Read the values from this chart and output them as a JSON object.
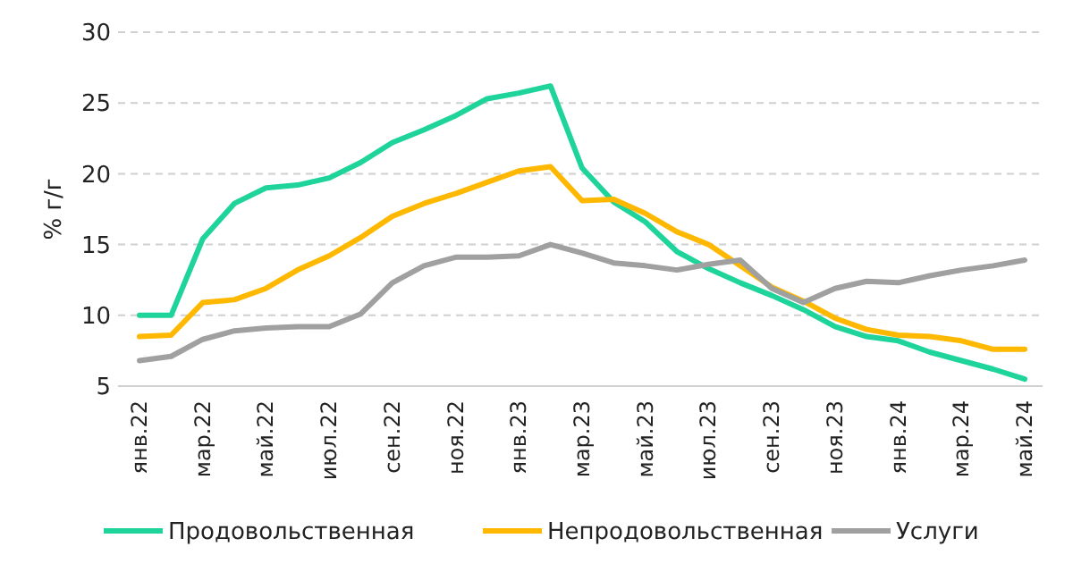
{
  "chart_data": {
    "type": "line",
    "ylabel": "% г/г",
    "categories": [
      "янв.22",
      null,
      "мар.22",
      null,
      "май.22",
      null,
      "июл.22",
      null,
      "сен.22",
      null,
      "ноя.22",
      null,
      "янв.23",
      null,
      "мар.23",
      null,
      "май.23",
      null,
      "июл.23",
      null,
      "сен.23",
      null,
      "ноя.23",
      null,
      "янв.24",
      null,
      "мар.24",
      null,
      "май.24"
    ],
    "series": [
      {
        "name": "Продовольственная",
        "color": "#1fd49a",
        "values": [
          10,
          10,
          15.4,
          17.9,
          19,
          19.2,
          19.7,
          20.8,
          22.2,
          23.1,
          24.1,
          25.3,
          25.7,
          26.2,
          20.4,
          18.0,
          16.6,
          14.5,
          13.3,
          12.3,
          11.4,
          10.4,
          9.2,
          8.5,
          8.2,
          7.4,
          6.8,
          6.2,
          5.5
        ]
      },
      {
        "name": "Непродовольственная",
        "color": "#ffb800",
        "values": [
          8.5,
          8.6,
          10.9,
          11.1,
          11.9,
          13.2,
          14.2,
          15.5,
          17.0,
          17.9,
          18.6,
          19.4,
          20.2,
          20.5,
          18.1,
          18.2,
          17.2,
          15.9,
          15.0,
          13.5,
          12.0,
          11.0,
          9.8,
          9.0,
          8.6,
          8.5,
          8.2,
          7.6,
          7.6
        ]
      },
      {
        "name": "Услуги",
        "color": "#a0a0a0",
        "values": [
          6.8,
          7.1,
          8.3,
          8.9,
          9.1,
          9.2,
          9.2,
          10.1,
          12.3,
          13.5,
          14.1,
          14.1,
          14.2,
          15.0,
          14.4,
          13.7,
          13.5,
          13.2,
          13.6,
          13.9,
          11.9,
          10.9,
          11.9,
          12.4,
          12.3,
          12.8,
          13.2,
          13.5,
          13.9
        ]
      }
    ],
    "ylim": [
      5,
      30
    ],
    "yticks": [
      5,
      10,
      15,
      20,
      25,
      30
    ],
    "grid": "y",
    "legend": "bottom",
    "marker": "none",
    "line_style": "solid"
  }
}
